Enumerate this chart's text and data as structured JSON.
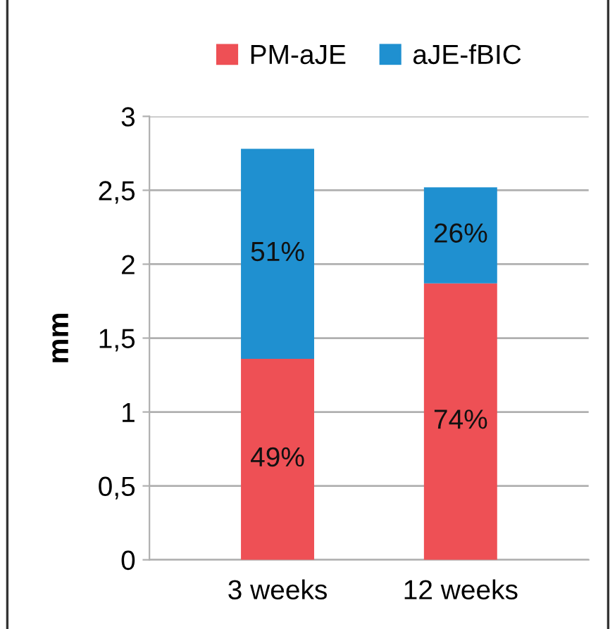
{
  "chart_data": {
    "type": "bar",
    "stacked": true,
    "ylabel": "mm",
    "categories": [
      "3 weeks",
      "12 weeks"
    ],
    "series": [
      {
        "name": "PM-aJE",
        "color": "#ee5055",
        "values": [
          1.36,
          1.87
        ]
      },
      {
        "name": "aJE-fBIC",
        "color": "#1f90d0",
        "values": [
          1.42,
          0.65
        ]
      }
    ],
    "annotations": [
      "49%",
      "74%",
      "51%",
      "26%"
    ],
    "ylim": [
      0,
      3
    ],
    "yticks": [
      {
        "value": 0,
        "label": "0"
      },
      {
        "value": 0.5,
        "label": "0,5"
      },
      {
        "value": 1,
        "label": "1"
      },
      {
        "value": 1.5,
        "label": "1,5"
      },
      {
        "value": 2,
        "label": "2"
      },
      {
        "value": 2.5,
        "label": "2,5"
      },
      {
        "value": 3,
        "label": "3"
      }
    ],
    "grid": "y",
    "legend": "top"
  }
}
